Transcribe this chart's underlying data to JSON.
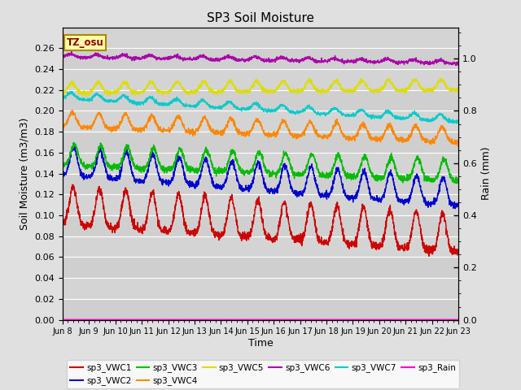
{
  "title": "SP3 Soil Moisture",
  "xlabel": "Time",
  "ylabel_left": "Soil Moisture (m3/m3)",
  "ylabel_right": "Rain (mm)",
  "ylim_left": [
    0.0,
    0.28
  ],
  "ylim_right": [
    0.0,
    1.12
  ],
  "tz_label": "TZ_osu",
  "x_ticks": [
    "Jun 8",
    "Jun 9",
    "Jun 10",
    "Jun 11",
    "Jun 12",
    "Jun 13",
    "Jun 14",
    "Jun 15",
    "Jun 16",
    "Jun 17",
    "Jun 18",
    "Jun 19",
    "Jun 20",
    "Jun 21",
    "Jun 22",
    "Jun 23"
  ],
  "yticks_left": [
    0.0,
    0.02,
    0.04,
    0.06,
    0.08,
    0.1,
    0.12,
    0.14,
    0.16,
    0.18,
    0.2,
    0.22,
    0.24,
    0.26
  ],
  "yticks_right": [
    0.0,
    0.2,
    0.4,
    0.6,
    0.8,
    1.0
  ],
  "bg_color": "#e0e0e0",
  "plot_bg_color": "#d4d4d4",
  "grid_color": "#ffffff",
  "series_colors": {
    "sp3_VWC1": "#cc0000",
    "sp3_VWC2": "#0000cc",
    "sp3_VWC3": "#00bb00",
    "sp3_VWC4": "#ff8800",
    "sp3_VWC5": "#dddd00",
    "sp3_VWC6": "#aa00aa",
    "sp3_VWC7": "#00cccc",
    "sp3_Rain": "#ff00cc"
  }
}
